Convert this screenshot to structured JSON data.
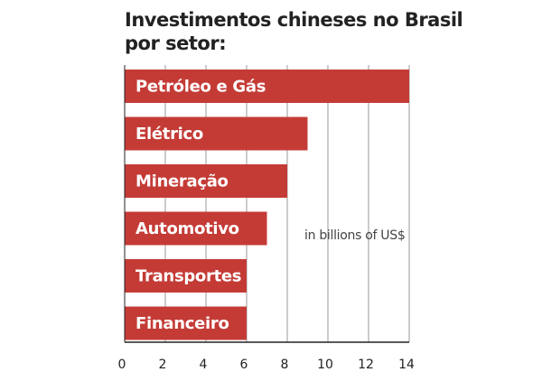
{
  "chart_data": {
    "type": "bar",
    "orientation": "horizontal",
    "title": "Investimentos chineses no Brasil por setor:",
    "unit_note": "in billions of US$",
    "categories": [
      "Petróleo e Gás",
      "Elétrico",
      "Mineração",
      "Automotivo",
      "Transportes",
      "Financeiro"
    ],
    "values": [
      14,
      9,
      8,
      7,
      6,
      6
    ],
    "xlim": [
      0,
      14
    ],
    "xticks": [
      0,
      2,
      4,
      6,
      8,
      10,
      12,
      14
    ],
    "grid": "vertical",
    "bar_color": "#c43b36"
  }
}
